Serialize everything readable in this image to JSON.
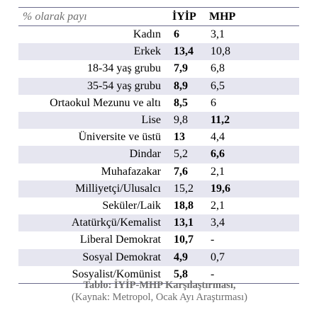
{
  "table": {
    "header": {
      "label": "% olarak payı",
      "col1": "İYİP",
      "col2": "MHP"
    },
    "rows": [
      {
        "label": "Kadın",
        "iyip": "6",
        "mhp": "3,1",
        "bold": "iyip"
      },
      {
        "label": "Erkek",
        "iyip": "13,4",
        "mhp": "10,8",
        "bold": "iyip"
      },
      {
        "label": "18-34 yaş grubu",
        "iyip": "7,9",
        "mhp": "6,8",
        "bold": "iyip"
      },
      {
        "label": "35-54 yaş grubu",
        "iyip": "8,9",
        "mhp": "6,5",
        "bold": "iyip"
      },
      {
        "label": "Ortaokul Mezunu ve altı",
        "iyip": "8,5",
        "mhp": "6",
        "bold": "iyip"
      },
      {
        "label": "Lise",
        "iyip": "9,8",
        "mhp": "11,2",
        "bold": "mhp"
      },
      {
        "label": "Üniversite ve üstü",
        "iyip": "13",
        "mhp": "4,4",
        "bold": "iyip"
      },
      {
        "label": "Dindar",
        "iyip": "5,2",
        "mhp": "6,6",
        "bold": "mhp"
      },
      {
        "label": "Muhafazakar",
        "iyip": "7,6",
        "mhp": "2,1",
        "bold": "iyip"
      },
      {
        "label": "Milliyetçi/Ulusalcı",
        "iyip": "15,2",
        "mhp": "19,6",
        "bold": "mhp"
      },
      {
        "label": "Seküler/Laik",
        "iyip": "18,8",
        "mhp": "2,1",
        "bold": "iyip"
      },
      {
        "label": "Atatürkçü/Kemalist",
        "iyip": "13,1",
        "mhp": "3,4",
        "bold": "iyip"
      },
      {
        "label": "Liberal Demokrat",
        "iyip": "10,7",
        "mhp": "-",
        "bold": "iyip"
      },
      {
        "label": "Sosyal Demokrat",
        "iyip": "4,9",
        "mhp": "0,7",
        "bold": "iyip"
      },
      {
        "label": "Sosyalist/Komünist",
        "iyip": "5,8",
        "mhp": "-",
        "bold": "iyip"
      }
    ]
  },
  "caption": {
    "line1": "Tablo: İYİP-MHP Karşılaştırması,",
    "line2": "(Kaynak: Metropol, Ocak Ayı Araştırması)"
  },
  "colors": {
    "shade": "#e6e6f0",
    "rule": "#6b6b8c",
    "caption": "#6e6e6e"
  }
}
